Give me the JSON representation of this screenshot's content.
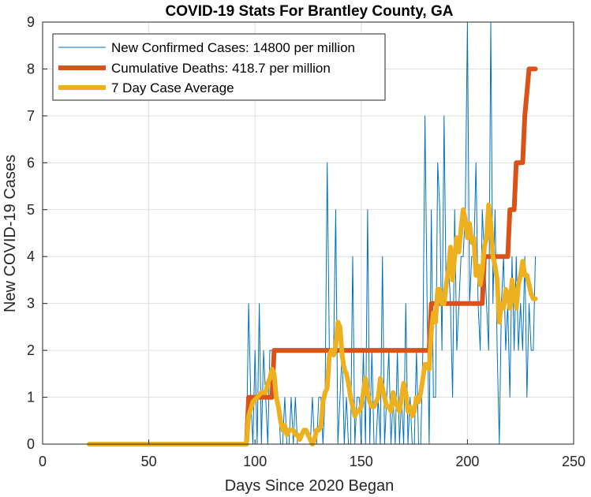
{
  "chart_data": {
    "type": "line",
    "title": "COVID-19 Stats For Brantley County, GA",
    "xlabel": "Days Since 2020 Began",
    "ylabel": "New COVID-19 Cases",
    "xlim": [
      0,
      250
    ],
    "ylim": [
      0,
      9
    ],
    "x_ticks": [
      0,
      50,
      100,
      150,
      200,
      250
    ],
    "y_ticks": [
      0,
      1,
      2,
      3,
      4,
      5,
      6,
      7,
      8,
      9
    ],
    "grid": true,
    "legend_position": "top-left",
    "series": [
      {
        "name": "New Confirmed Cases: 14800 per million",
        "color": "#0072bd",
        "style": "thin",
        "x": [
          22,
          96,
          97,
          98,
          99,
          100,
          101,
          102,
          103,
          104,
          105,
          106,
          107,
          108,
          109,
          110,
          111,
          112,
          113,
          114,
          115,
          116,
          117,
          118,
          119,
          120,
          121,
          122,
          123,
          124,
          125,
          126,
          127,
          128,
          129,
          130,
          131,
          132,
          133,
          134,
          135,
          136,
          137,
          138,
          139,
          140,
          141,
          142,
          143,
          144,
          145,
          146,
          147,
          148,
          149,
          150,
          151,
          152,
          153,
          154,
          155,
          156,
          157,
          158,
          159,
          160,
          161,
          162,
          163,
          164,
          165,
          166,
          167,
          168,
          169,
          170,
          171,
          172,
          173,
          174,
          175,
          176,
          177,
          178,
          179,
          180,
          181,
          182,
          183,
          184,
          185,
          186,
          187,
          188,
          189,
          190,
          191,
          192,
          193,
          194,
          195,
          196,
          197,
          198,
          199,
          200,
          201,
          202,
          203,
          204,
          205,
          206,
          207,
          208,
          209,
          210,
          211,
          212,
          213,
          214,
          215,
          216,
          217,
          218,
          219,
          220,
          221,
          222,
          223,
          224,
          225,
          226,
          227,
          228,
          229,
          230,
          231,
          232
        ],
        "values": [
          0,
          0,
          3,
          1,
          0,
          2,
          0,
          3,
          0,
          2,
          1,
          0,
          2,
          2,
          2,
          1,
          1,
          0,
          0,
          1,
          0,
          0,
          1,
          0,
          1,
          0,
          0,
          0,
          0,
          0,
          0,
          0,
          1,
          0,
          0,
          1,
          1,
          0,
          1,
          6,
          2,
          2,
          2,
          5,
          0,
          1,
          2,
          0,
          1,
          0,
          0,
          4,
          0,
          1,
          1,
          0,
          2,
          0,
          5,
          0,
          2,
          0,
          0,
          1,
          0,
          4,
          0,
          1,
          2,
          0,
          1,
          0,
          2,
          0,
          1,
          0,
          3,
          0,
          1,
          0,
          0,
          2,
          0,
          0,
          2,
          7,
          3,
          0,
          5,
          1,
          1,
          6,
          5,
          2,
          7,
          3,
          4,
          3,
          1,
          5,
          2,
          3,
          4,
          4,
          5,
          9,
          3,
          4,
          4,
          6,
          3,
          2,
          5,
          4,
          3,
          2,
          9,
          3,
          5,
          2,
          0,
          3,
          4,
          2,
          3,
          1,
          4,
          2,
          4,
          2,
          3,
          2,
          4,
          1,
          3,
          2,
          2,
          4
        ]
      },
      {
        "name": "Cumulative Deaths: 418.7 per million",
        "color": "#d95319",
        "style": "thick",
        "x": [
          22,
          96,
          97,
          108,
          109,
          182,
          183,
          207,
          208,
          219,
          220,
          222,
          223,
          226,
          227,
          229,
          232
        ],
        "values": [
          0,
          0,
          1,
          1,
          2,
          2,
          3,
          3,
          4,
          4,
          5,
          5,
          6,
          6,
          7,
          8,
          8
        ]
      },
      {
        "name": "7 Day Case Average",
        "color": "#edb120",
        "style": "thick",
        "x": [
          22,
          96,
          97,
          99,
          101,
          103,
          105,
          106,
          107,
          108,
          109,
          110,
          111,
          112,
          113,
          114,
          115,
          116,
          117,
          118,
          119,
          120,
          121,
          122,
          123,
          124,
          125,
          126,
          127,
          128,
          129,
          130,
          131,
          132,
          133,
          134,
          135,
          136,
          137,
          138,
          139,
          140,
          141,
          142,
          143,
          144,
          145,
          146,
          147,
          148,
          149,
          150,
          151,
          152,
          153,
          154,
          155,
          156,
          157,
          158,
          159,
          160,
          161,
          162,
          163,
          164,
          165,
          166,
          167,
          168,
          169,
          170,
          171,
          172,
          173,
          174,
          175,
          176,
          177,
          178,
          179,
          180,
          181,
          182,
          183,
          184,
          185,
          186,
          187,
          188,
          189,
          190,
          191,
          192,
          193,
          194,
          195,
          196,
          197,
          198,
          199,
          200,
          201,
          202,
          203,
          204,
          205,
          206,
          207,
          208,
          209,
          210,
          211,
          212,
          213,
          214,
          215,
          216,
          217,
          218,
          219,
          220,
          221,
          222,
          223,
          224,
          225,
          226,
          227,
          228,
          229,
          230,
          231,
          232
        ],
        "values": [
          0,
          0,
          0.6,
          0.9,
          1.0,
          1.1,
          1.1,
          1.3,
          1.4,
          1.6,
          1.5,
          1.0,
          0.8,
          0.5,
          0.3,
          0.4,
          0.2,
          0.3,
          0.3,
          0.3,
          0.2,
          0.2,
          0.1,
          0.2,
          0.3,
          0.3,
          0.2,
          0.1,
          0.0,
          0.1,
          0.3,
          0.3,
          0.4,
          0.9,
          1.1,
          1.2,
          1.9,
          2.0,
          1.9,
          2.1,
          2.6,
          2.5,
          1.9,
          1.6,
          1.5,
          1.3,
          1.0,
          0.8,
          0.6,
          0.7,
          0.7,
          0.8,
          1.1,
          1.4,
          1.1,
          0.9,
          0.8,
          0.8,
          0.9,
          1.0,
          1.4,
          1.2,
          1.0,
          0.8,
          0.8,
          0.7,
          1.1,
          0.9,
          0.8,
          0.7,
          1.0,
          1.3,
          1.1,
          0.7,
          0.8,
          0.6,
          0.7,
          1.0,
          0.9,
          1.1,
          1.4,
          1.7,
          1.7,
          1.6,
          2.4,
          2.8,
          2.6,
          3.3,
          3.3,
          3.0,
          3.0,
          3.4,
          3.7,
          4.2,
          3.5,
          4.0,
          4.4,
          4.1,
          4.6,
          5.0,
          4.8,
          4.4,
          4.7,
          4.3,
          4.4,
          3.6,
          3.8,
          3.4,
          3.7,
          4.2,
          4.4,
          5.1,
          4.7,
          4.0,
          3.8,
          3.5,
          2.6,
          3.0,
          2.9,
          3.3,
          3.2,
          2.9,
          3.5,
          3.2,
          2.9,
          3.4,
          3.6,
          3.9,
          3.6,
          3.6,
          3.4,
          3.2,
          3.1,
          3.1
        ]
      }
    ]
  }
}
